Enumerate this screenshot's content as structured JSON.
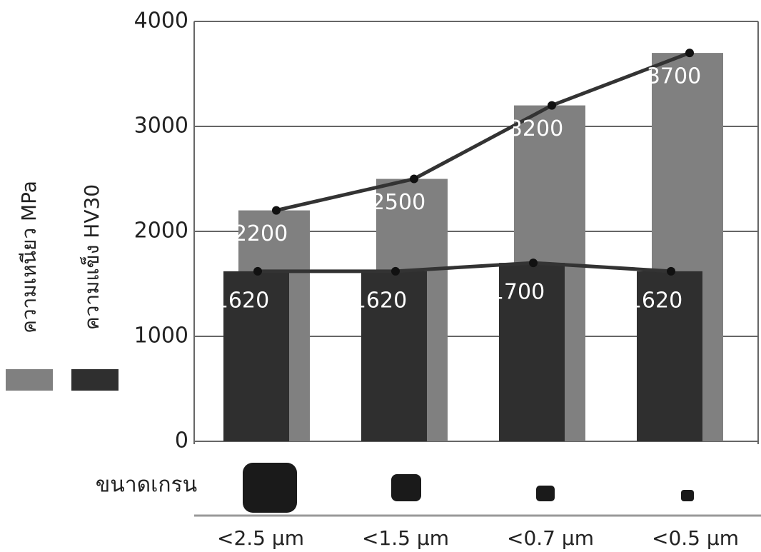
{
  "chart_data": {
    "type": "bar",
    "x_label": "ขนาดเกรน",
    "categories": [
      "<2.5 µm",
      "<1.5 µm",
      "<0.7 µm",
      "<0.5 µm"
    ],
    "series": [
      {
        "name": "ความเหนียว MPa",
        "color": "#808080",
        "values": [
          2200,
          2500,
          3200,
          3700
        ]
      },
      {
        "name": "ความแข็ง HV30",
        "color": "#2f2f2f",
        "values": [
          1620,
          1620,
          1700,
          1620
        ]
      }
    ],
    "ylim": [
      0,
      4000
    ],
    "yticks": [
      0,
      1000,
      2000,
      3000,
      4000
    ],
    "grid": true
  }
}
